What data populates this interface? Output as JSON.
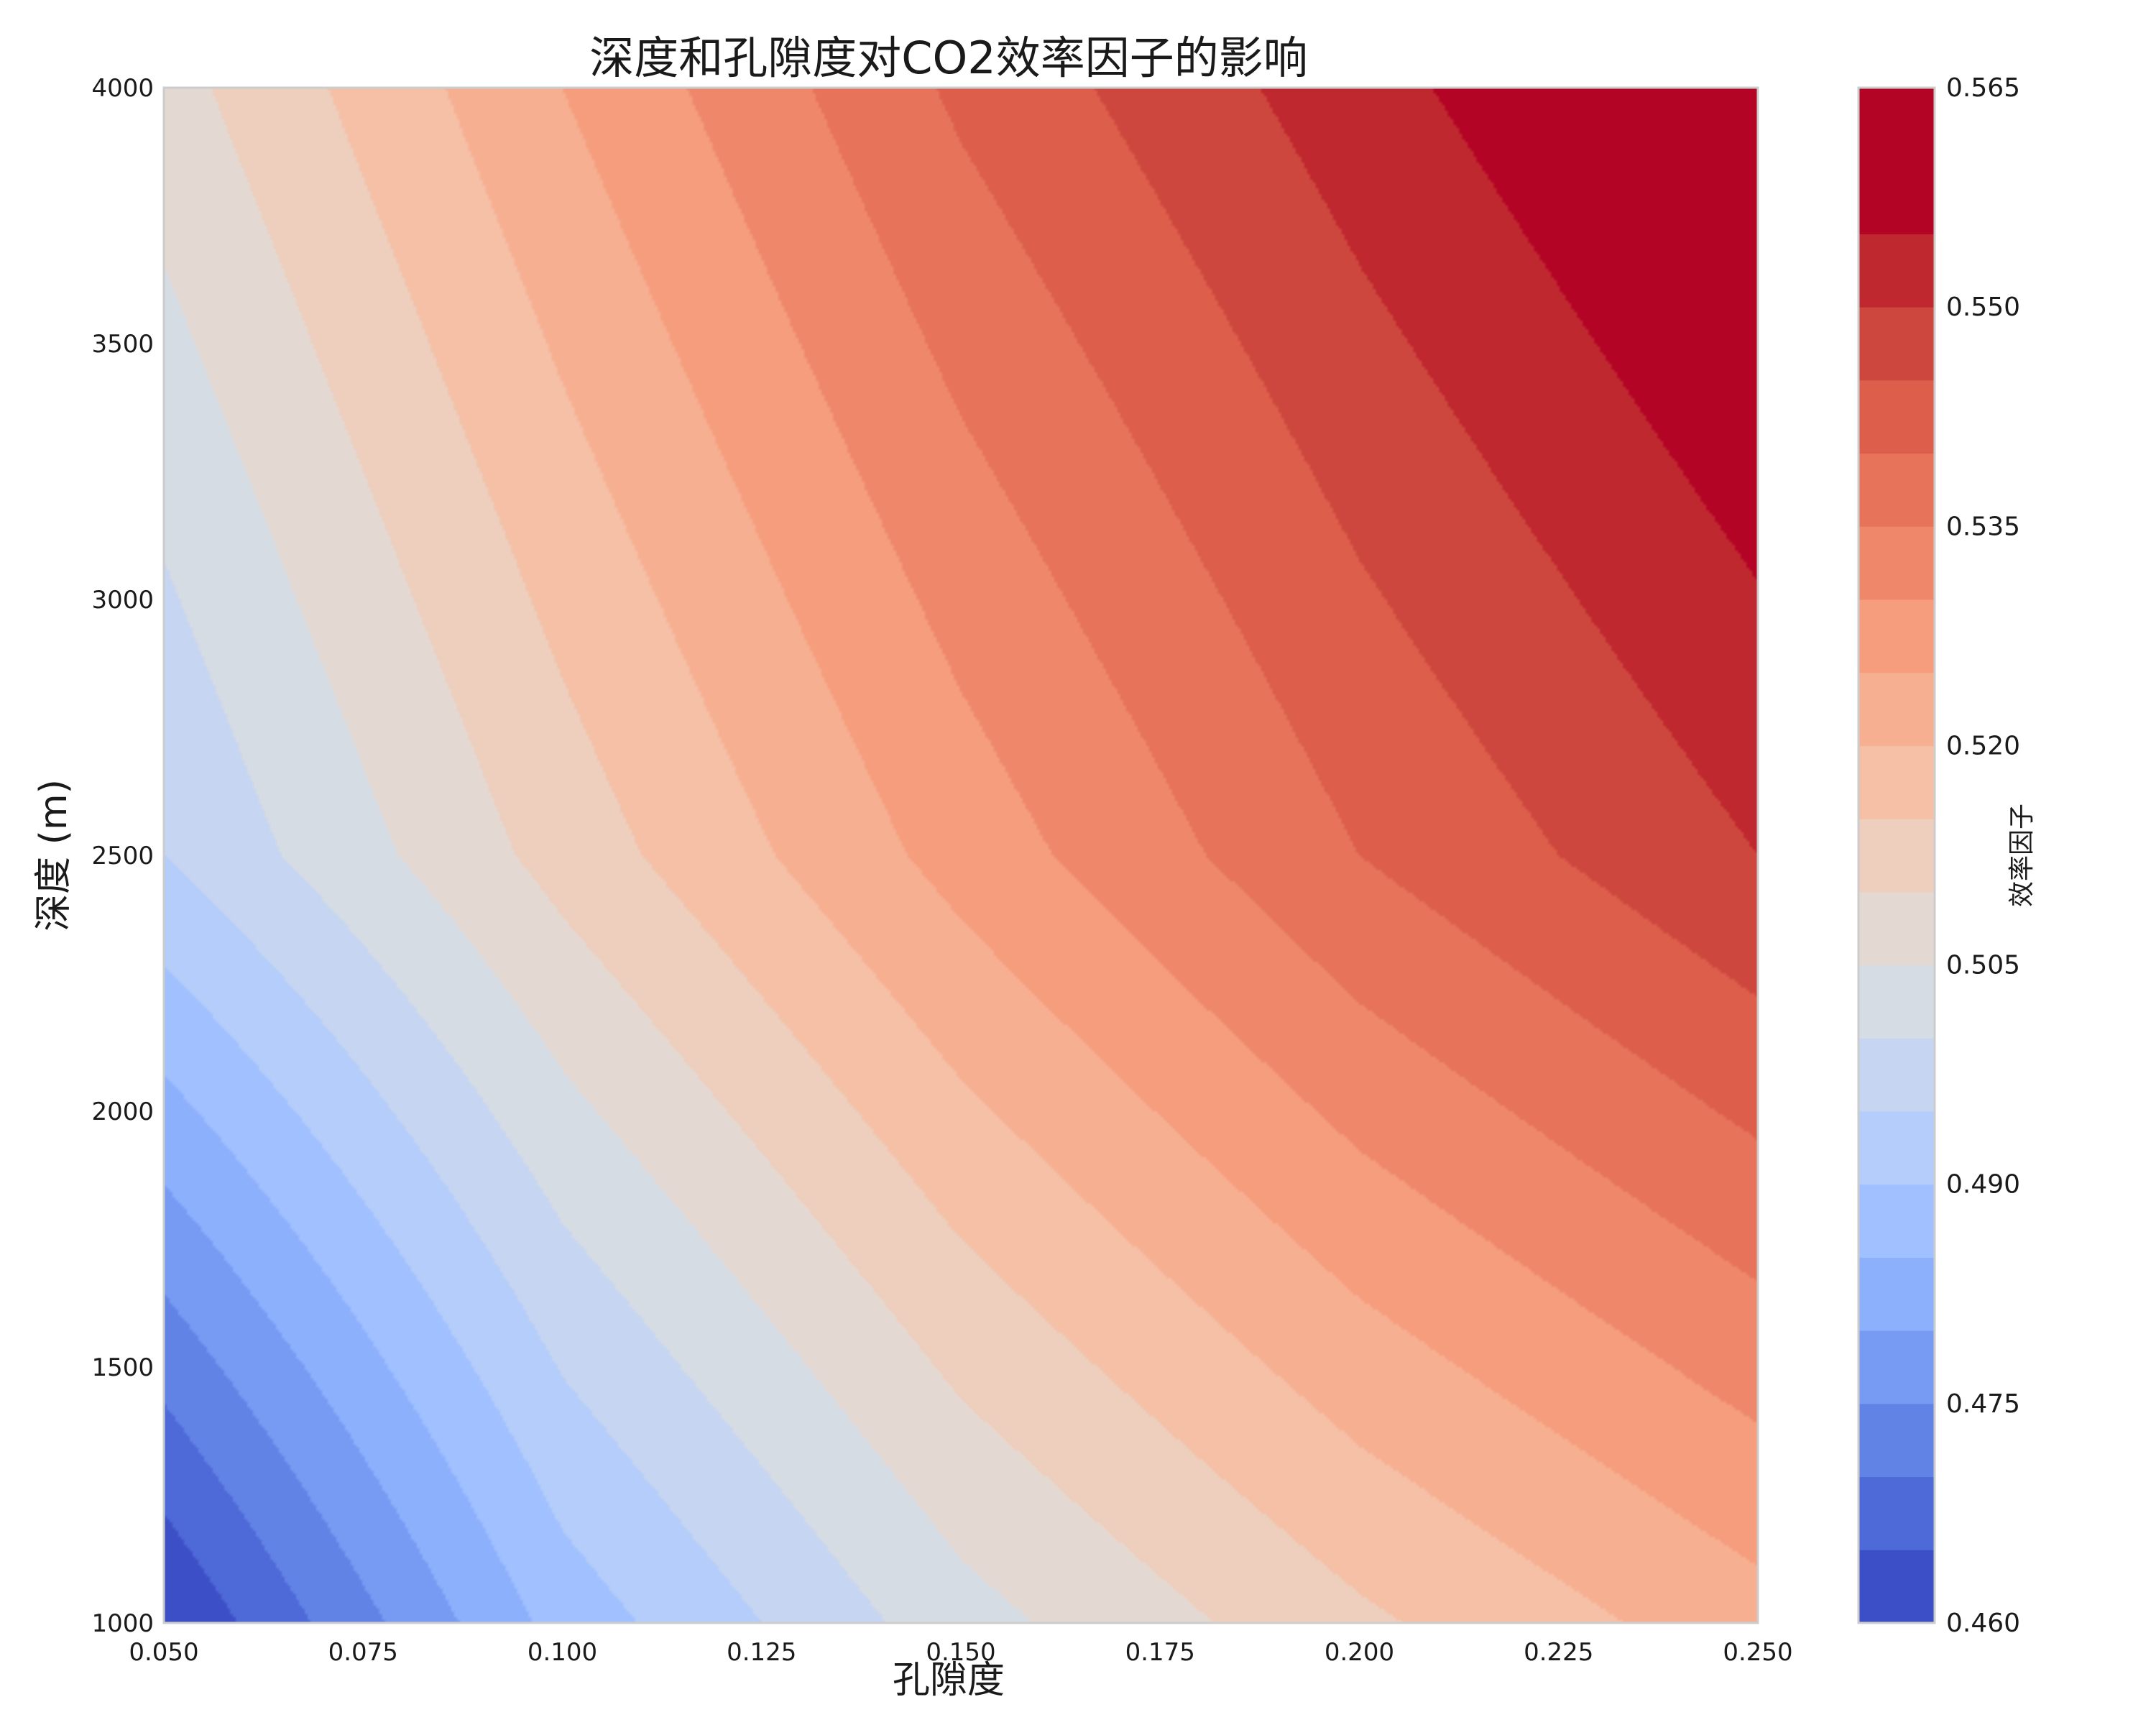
{
  "chart_data": {
    "type": "heatmap",
    "subtype": "filled-contour",
    "title": "深度和孔隙度对CO2效率因子的影响",
    "xlabel": "孔隙度",
    "ylabel": "深度 (m)",
    "colorbar_label": "效率因子",
    "xlim": [
      0.05,
      0.25
    ],
    "ylim": [
      1000,
      4000
    ],
    "x_ticks": [
      "0.050",
      "0.075",
      "0.100",
      "0.125",
      "0.150",
      "0.175",
      "0.200",
      "0.225",
      "0.250"
    ],
    "y_ticks": [
      "1000",
      "1500",
      "2000",
      "2500",
      "3000",
      "3500",
      "4000"
    ],
    "colorbar_range": [
      0.46,
      0.565
    ],
    "colorbar_ticks": [
      "0.460",
      "0.475",
      "0.490",
      "0.505",
      "0.520",
      "0.535",
      "0.550",
      "0.565"
    ],
    "level_step": 0.005,
    "levels": [
      0.46,
      0.465,
      0.47,
      0.475,
      0.48,
      0.485,
      0.49,
      0.495,
      0.5,
      0.505,
      0.51,
      0.515,
      0.52,
      0.525,
      0.53,
      0.535,
      0.54,
      0.545,
      0.55,
      0.555,
      0.56,
      0.565
    ],
    "colormap": "coolwarm",
    "level_colors": [
      "#3d4fc6",
      "#4e69d8",
      "#6283e6",
      "#779bf3",
      "#8db0fd",
      "#a1c0ff",
      "#b5cdfa",
      "#c6d5f1",
      "#d6dce4",
      "#e4d9d2",
      "#eecebd",
      "#f5c0a6",
      "#f7af91",
      "#f59d7d",
      "#ef886b",
      "#e6735a",
      "#dc5e4b",
      "#ce473e",
      "#c0282f",
      "#b40426",
      "#b40426"
    ],
    "grid": false,
    "z_values": {
      "x": [
        0.05,
        0.1,
        0.15,
        0.2,
        0.25
      ],
      "y": [
        1000,
        2500,
        4000
      ],
      "z": [
        [
          0.46,
          0.487,
          0.503,
          0.514,
          0.523
        ],
        [
          0.495,
          0.512,
          0.527,
          0.54,
          0.55
        ],
        [
          0.508,
          0.525,
          0.541,
          0.553,
          0.564
        ]
      ]
    }
  }
}
